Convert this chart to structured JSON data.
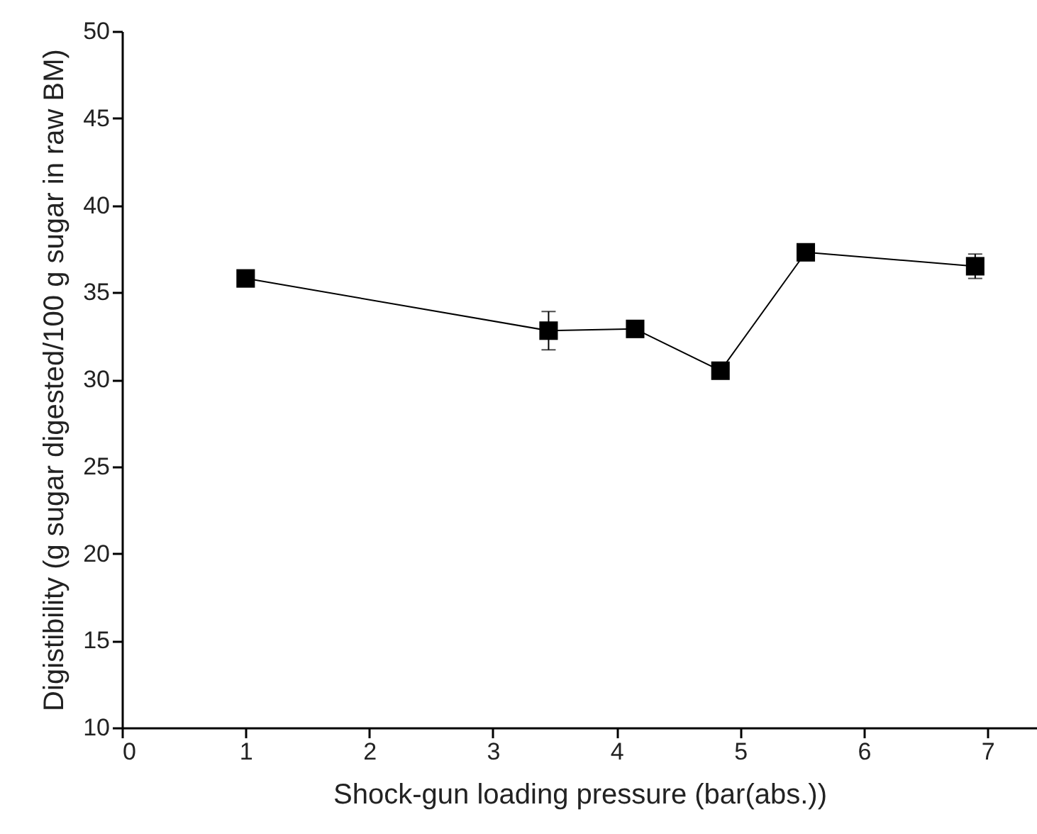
{
  "chart_data": {
    "type": "line",
    "xlabel": "Shock-gun loading pressure (bar(abs.))",
    "ylabel": "Digistibility (g sugar digested/100 g sugar in raw BM)",
    "x": [
      1.0,
      3.45,
      4.15,
      4.84,
      5.53,
      6.9
    ],
    "series": [
      {
        "color": "#000000",
        "values": [
          35.8,
          32.8,
          32.9,
          30.5,
          37.3,
          36.5
        ],
        "errors": [
          null,
          [
            31.7,
            33.9
          ],
          null,
          null,
          null,
          [
            35.8,
            37.2
          ]
        ]
      }
    ],
    "marker": "square",
    "line_style": "solid",
    "grid": false,
    "xlim": [
      0,
      7.4
    ],
    "xticks": [
      0,
      1,
      2,
      3,
      4,
      5,
      6,
      7
    ],
    "ylim": [
      10,
      50
    ],
    "yticks": [
      10,
      15,
      20,
      25,
      30,
      35,
      40,
      45,
      50
    ]
  }
}
